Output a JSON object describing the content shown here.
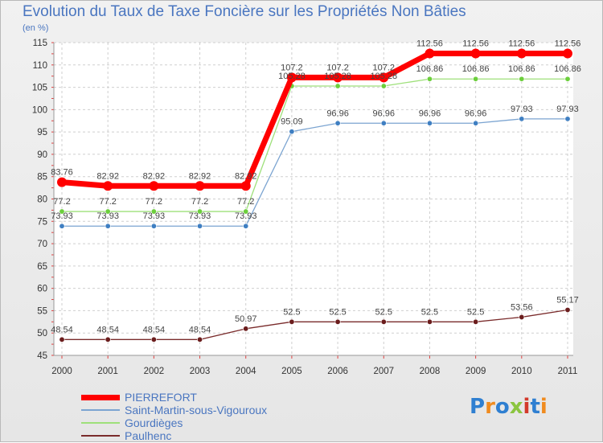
{
  "header": {
    "title": "Evolution du Taux de Taxe Foncière sur les Propriétés Non Bâties",
    "unit": "(en %)"
  },
  "logo": {
    "letters": [
      "P",
      "r",
      "o",
      "x",
      "i",
      "t",
      "i"
    ],
    "colors": [
      "#2f7fd1",
      "#f08b1f",
      "#2f7fd1",
      "#8bc53f",
      "#d33a2c",
      "#2f7fd1",
      "#f08b1f"
    ]
  },
  "chart_data": {
    "type": "line",
    "title": "Evolution du Taux de Taxe Foncière sur les Propriétés Non Bâties",
    "ylabel": "(en %)",
    "xlabel": "",
    "ylim": [
      45,
      115
    ],
    "yticks": [
      45,
      50,
      55,
      60,
      65,
      70,
      75,
      80,
      85,
      90,
      95,
      100,
      105,
      110,
      115
    ],
    "grid": true,
    "x": [
      "2000",
      "2001",
      "2002",
      "2003",
      "2004",
      "2005",
      "2006",
      "2007",
      "2008",
      "2009",
      "2010",
      "2011"
    ],
    "series": [
      {
        "name": "PIERREFORT",
        "color": "#ff0000",
        "marker": "#ff0000",
        "values": [
          83.76,
          82.92,
          82.92,
          82.92,
          82.92,
          107.2,
          107.2,
          107.2,
          112.56,
          112.56,
          112.56,
          112.56
        ],
        "labels": [
          "83.76",
          "82.92",
          "82.92",
          "82.92",
          "82.92",
          "107.2",
          "107.2",
          "107.2",
          "112.56",
          "112.56",
          "112.56",
          "112.56"
        ]
      },
      {
        "name": "Saint-Martin-sous-Vigouroux",
        "color": "#7ba4d1",
        "marker": "#3f7fc2",
        "values": [
          73.93,
          73.93,
          73.93,
          73.93,
          73.93,
          95.09,
          96.96,
          96.96,
          96.96,
          96.96,
          97.93,
          97.93
        ],
        "labels": [
          "73.93",
          "73.93",
          "73.93",
          "73.93",
          "73.93",
          "95.09",
          "96.96",
          "96.96",
          "96.96",
          "96.96",
          "97.93",
          "97.93"
        ]
      },
      {
        "name": "Gourdièges",
        "color": "#9ee07a",
        "marker": "#6ccf3c",
        "values": [
          77.2,
          77.2,
          77.2,
          77.2,
          77.2,
          105.28,
          105.28,
          105.28,
          106.86,
          106.86,
          106.86,
          106.86
        ],
        "labels": [
          "77.2",
          "77.2",
          "77.2",
          "77.2",
          "77.2",
          "105.28",
          "105.28",
          "105.28",
          "106.86",
          "106.86",
          "106.86",
          "106.86"
        ]
      },
      {
        "name": "Paulhenc",
        "color": "#7a2b2b",
        "marker": "#6b1d1d",
        "values": [
          48.54,
          48.54,
          48.54,
          48.54,
          50.97,
          52.5,
          52.5,
          52.5,
          52.5,
          52.5,
          53.56,
          55.17
        ],
        "labels": [
          "48.54",
          "48.54",
          "48.54",
          "48.54",
          "50.97",
          "52.5",
          "52.5",
          "52.5",
          "52.5",
          "52.5",
          "53.56",
          "55.17"
        ]
      }
    ]
  }
}
